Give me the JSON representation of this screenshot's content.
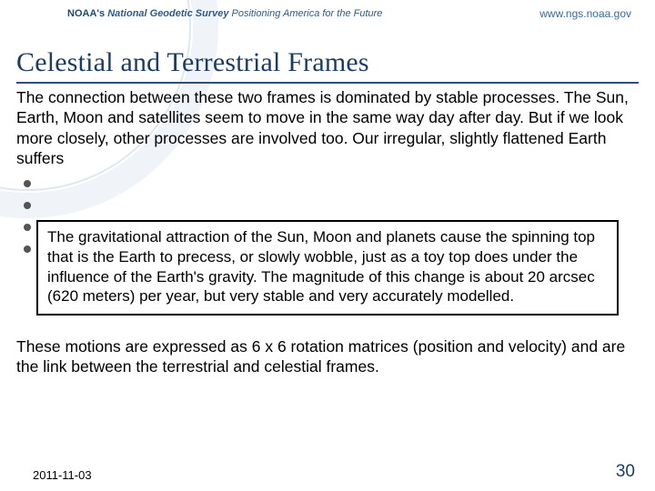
{
  "header": {
    "org_bold": "NOAA's",
    "org_italic_bold": "National Geodetic Survey",
    "org_tagline": "Positioning America for the Future",
    "url": "www.ngs.noaa.gov"
  },
  "title": "Celestial and Terrestrial Frames",
  "intro": "The connection between these two frames is dominated by stable processes. The Sun, Earth, Moon and satellites seem to move in the same way day after day. But if we look more closely, other processes are involved too. Our irregular, slightly flattened Earth suffers",
  "callout": "The gravitational attraction of the Sun, Moon and planets cause the spinning top that is the Earth to precess, or slowly wobble, just as a toy top does under the influence of the Earth's gravity. The magnitude of this change is about 20 arcsec (620 meters) per year, but very stable and very accurately modelled.",
  "outro": "These motions are expressed as 6 x 6 rotation matrices (position and velocity) and are the link between the terrestrial and celestial frames.",
  "footer": {
    "date": "2011-11-03",
    "page": "30"
  },
  "colors": {
    "title_color": "#1c3c63",
    "rule_color": "#314f76",
    "body_color": "#000000",
    "page_color": "#1c3c63",
    "arc_color": "#eef3f7",
    "background": "#ffffff"
  }
}
